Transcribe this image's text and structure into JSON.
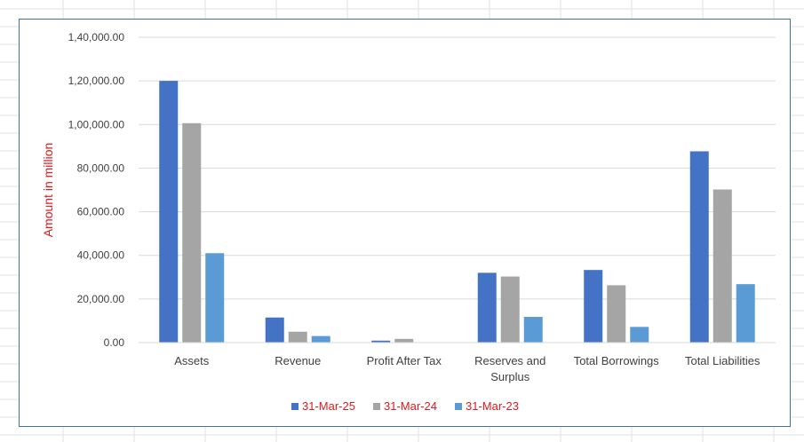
{
  "chart_data": {
    "type": "bar",
    "categories": [
      "Assets",
      "Revenue",
      "Profit After Tax",
      "Reserves and Surplus",
      "Total Borrowings",
      "Total Liabilities"
    ],
    "series": [
      {
        "name": "31-Mar-25",
        "color": "#4472c4",
        "values": [
          120000,
          11500,
          900,
          32000,
          33300,
          87700
        ]
      },
      {
        "name": "31-Mar-24",
        "color": "#a5a5a5",
        "values": [
          100600,
          5000,
          1700,
          30300,
          26300,
          70200
        ]
      },
      {
        "name": "31-Mar-23",
        "color": "#5b9bd5",
        "values": [
          41000,
          3000,
          0,
          11800,
          7200,
          26800
        ]
      }
    ],
    "title": "",
    "xlabel": "",
    "ylabel": "Amount in million",
    "ylim": [
      0,
      140000
    ],
    "yticks": [
      0,
      20000,
      40000,
      60000,
      80000,
      100000,
      120000,
      140000
    ],
    "ytick_labels": [
      "0.00",
      "20,000.00",
      "40,000.00",
      "60,000.00",
      "80,000.00",
      "1,00,000.00",
      "1,20,000.00",
      "1,40,000.00"
    ],
    "grid": true,
    "legend_position": "bottom"
  }
}
